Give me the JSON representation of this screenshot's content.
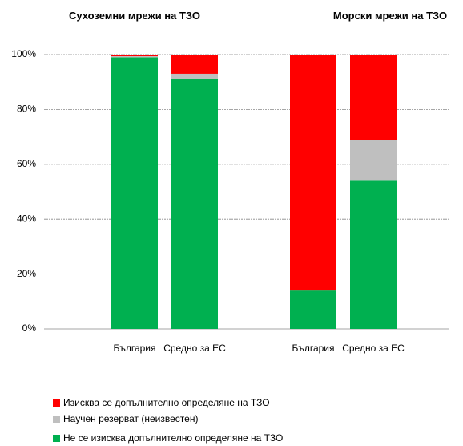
{
  "chart_data": {
    "type": "stacked_bar",
    "group_titles": [
      "Сухоземни мрежи на ТЗО",
      "Морски мрежи на ТЗО"
    ],
    "categories": [
      "България",
      "Средно за ЕС",
      "България",
      "Средно за ЕС"
    ],
    "series": [
      {
        "name": "Не се изисква допълнително определяне на ТЗО",
        "color": "#00b050",
        "values": [
          99,
          91,
          14,
          54
        ]
      },
      {
        "name": "Научен резерват (неизвестен)",
        "color": "#bfbfbf",
        "values": [
          0.4,
          2,
          0,
          15
        ]
      },
      {
        "name": "Изисква се допълнително определяне на ТЗО",
        "color": "#ff0000",
        "values": [
          0.6,
          7,
          86,
          31
        ]
      }
    ],
    "ylim": [
      0,
      100
    ],
    "yticks": [
      {
        "value": 0,
        "label": "0%"
      },
      {
        "value": 20,
        "label": "20%"
      },
      {
        "value": 40,
        "label": "40%"
      },
      {
        "value": 60,
        "label": "60%"
      },
      {
        "value": 80,
        "label": "80%"
      },
      {
        "value": 100,
        "label": "100%"
      }
    ],
    "grid": true
  }
}
